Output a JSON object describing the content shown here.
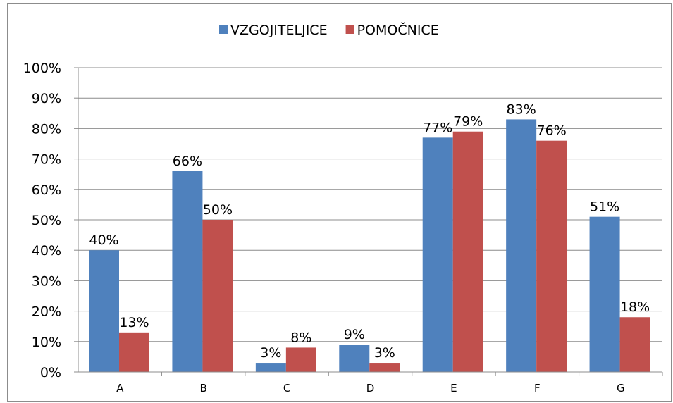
{
  "chart_data": {
    "type": "bar",
    "title": "",
    "xlabel": "",
    "ylabel": "",
    "categories": [
      "A",
      "B",
      "C",
      "D",
      "E",
      "F",
      "G"
    ],
    "series": [
      {
        "name": "VZGOJITELJICE",
        "color": "#4f81bd",
        "values": [
          40,
          66,
          3,
          9,
          77,
          83,
          51
        ]
      },
      {
        "name": "POMOČNICE",
        "color": "#c0504d",
        "values": [
          13,
          50,
          8,
          3,
          79,
          76,
          18
        ]
      }
    ],
    "ylim": [
      0,
      100
    ],
    "yticks": [
      0,
      10,
      20,
      30,
      40,
      50,
      60,
      70,
      80,
      90,
      100
    ],
    "ytick_labels": [
      "0%",
      "10%",
      "20%",
      "30%",
      "40%",
      "50%",
      "60%",
      "70%",
      "80%",
      "90%",
      "100%"
    ],
    "data_label_suffix": "%",
    "legend_position": "top",
    "grid": true
  }
}
